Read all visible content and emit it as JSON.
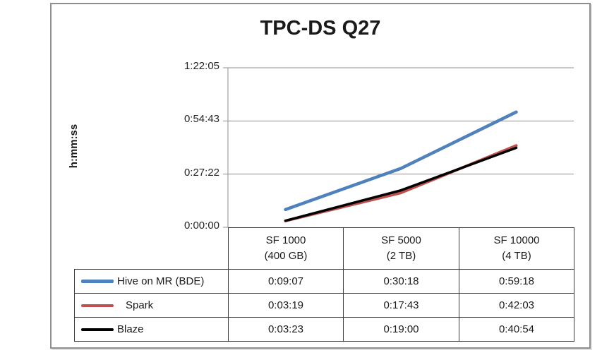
{
  "chart_data": {
    "type": "line",
    "title": "TPC-DS Q27",
    "ylabel": "h:mm:ss",
    "categories": [
      {
        "line1": "SF 1000",
        "line2": "(400 GB)"
      },
      {
        "line1": "SF 5000",
        "line2": "(2 TB)"
      },
      {
        "line1": "SF 10000",
        "line2": "(4 TB)"
      }
    ],
    "series": [
      {
        "name": "Hive on MR (BDE)",
        "color": "#4F81BD",
        "values": [
          "0:09:07",
          "0:30:18",
          "0:59:18"
        ]
      },
      {
        "name": "Spark",
        "color": "#C0504D",
        "values": [
          "0:03:19",
          "0:17:43",
          "0:42:03"
        ]
      },
      {
        "name": "Blaze",
        "color": "#000000",
        "values": [
          "0:03:23",
          "0:19:00",
          "0:40:54"
        ]
      }
    ],
    "y_axis": {
      "ticks": [
        "1:22:05",
        "0:54:43",
        "0:27:22",
        "0:00:00"
      ],
      "min": "0:00:00",
      "max": "1:22:05"
    },
    "grid": true,
    "legend_position": "left column of data table",
    "data_table_shown": true
  }
}
